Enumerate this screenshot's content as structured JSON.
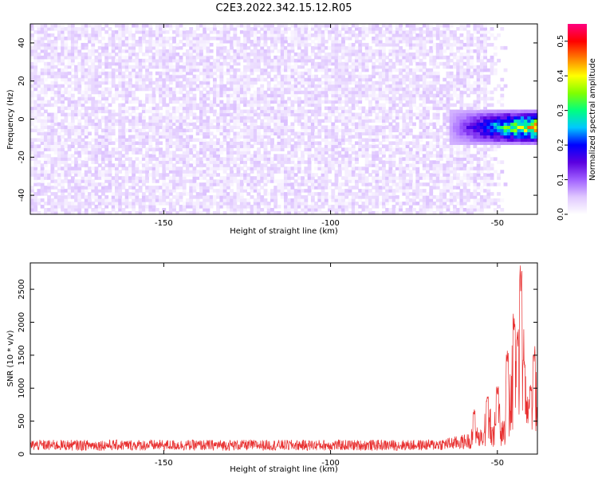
{
  "title": "C2E3.2022.342.15.12.R05",
  "chart_data": [
    {
      "type": "heatmap",
      "xlabel": "Height of straight line (km)",
      "ylabel": "Frequency (Hz)",
      "xlim": [
        -190,
        -38
      ],
      "ylim": [
        -50,
        50
      ],
      "xticks": [
        -150,
        -100,
        -50
      ],
      "yticks": [
        -40,
        -20,
        0,
        20,
        40
      ],
      "colorbar": {
        "label": "Normalized spectral amplitude",
        "range": [
          0,
          0.55
        ],
        "ticks": [
          0.0,
          0.1,
          0.2,
          0.3,
          0.4,
          0.5
        ],
        "colors": [
          "#ffffff",
          "#e0c8ff",
          "#a060ff",
          "#5b00e0",
          "#0000ff",
          "#00c8ff",
          "#00ff80",
          "#80ff00",
          "#ffff00",
          "#ff8000",
          "#ff0000",
          "#ff0080"
        ]
      },
      "noise_region": {
        "x_range": [
          -190,
          -55
        ],
        "y_range": [
          -50,
          50
        ],
        "typical_amplitude": 0.03
      },
      "signal_region": {
        "x_range": [
          -65,
          -38
        ],
        "center_frequency": -5,
        "peak_amplitude": 0.5,
        "peak_height": -43
      }
    },
    {
      "type": "line",
      "xlabel": "Height of straight line (km)",
      "ylabel": "SNR (10 * v/v)",
      "xlim": [
        -190,
        -38
      ],
      "ylim": [
        0,
        2900
      ],
      "xticks": [
        -150,
        -100,
        -50
      ],
      "yticks": [
        0,
        500,
        1000,
        1500,
        2000,
        2500
      ],
      "color": "#e83030",
      "baseline_level": 150,
      "peaks": [
        {
          "x": -57,
          "y": 700
        },
        {
          "x": -53,
          "y": 900
        },
        {
          "x": -50,
          "y": 1050
        },
        {
          "x": -47,
          "y": 1600
        },
        {
          "x": -45,
          "y": 2150
        },
        {
          "x": -44,
          "y": 1900
        },
        {
          "x": -43,
          "y": 2900
        },
        {
          "x": -42,
          "y": 1500
        },
        {
          "x": -40,
          "y": 1100
        },
        {
          "x": -39,
          "y": 1650
        }
      ]
    }
  ]
}
